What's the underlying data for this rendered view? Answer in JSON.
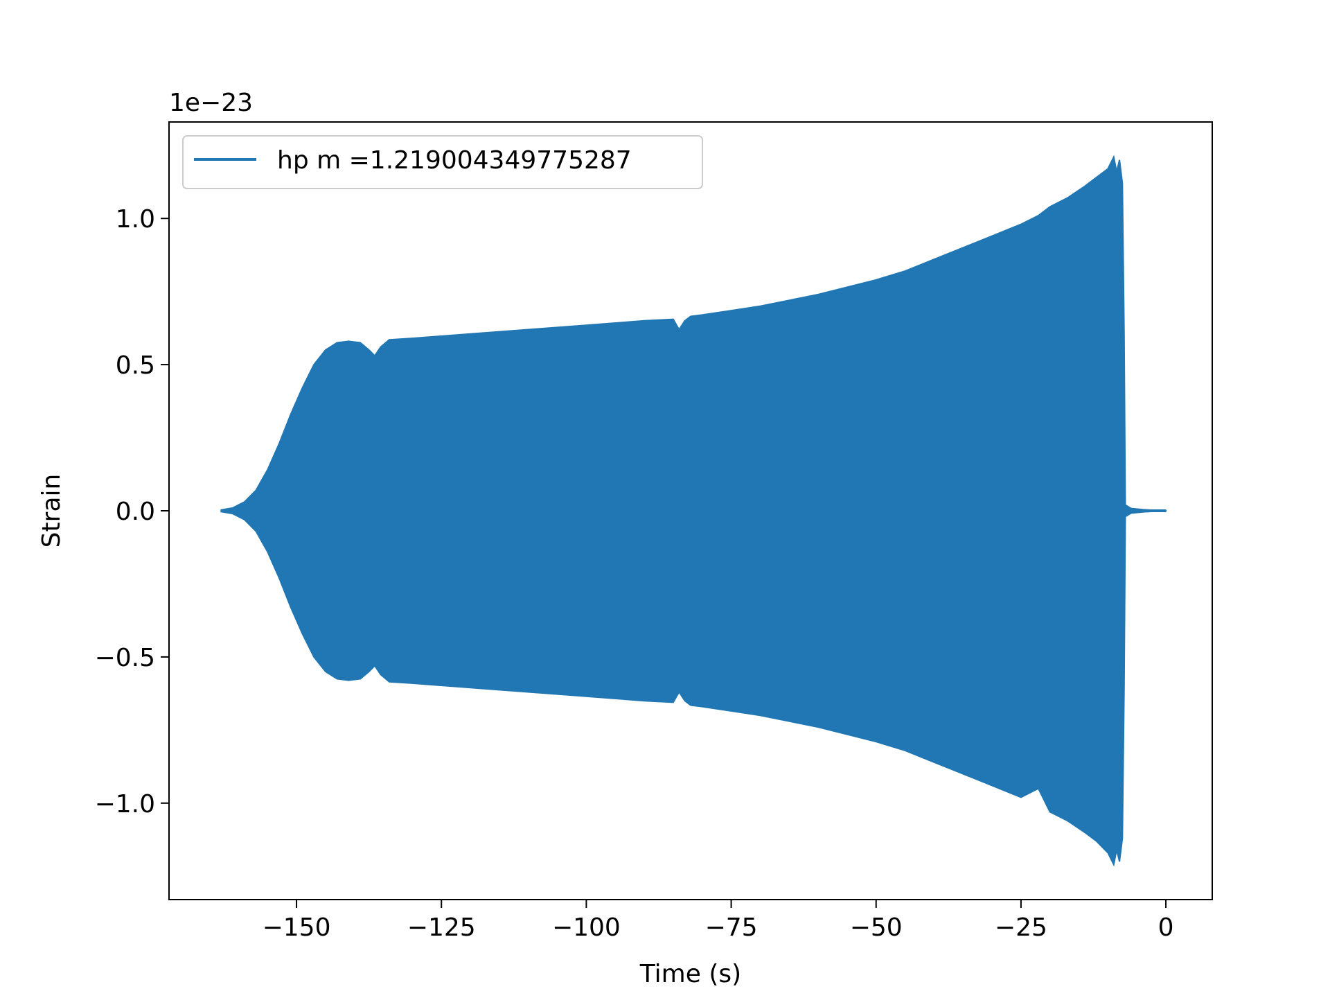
{
  "chart_data": {
    "type": "area",
    "title": "",
    "xlabel": "Time (s)",
    "ylabel": "Strain",
    "offset_label": "1e−23",
    "xlim": [
      -172,
      8
    ],
    "ylim": [
      -1.33,
      1.33
    ],
    "xticks": [
      {
        "value": -150,
        "label": "−150"
      },
      {
        "value": -125,
        "label": "−125"
      },
      {
        "value": -100,
        "label": "−100"
      },
      {
        "value": -75,
        "label": "−75"
      },
      {
        "value": -50,
        "label": "−50"
      },
      {
        "value": -25,
        "label": "−25"
      },
      {
        "value": 0,
        "label": "0"
      }
    ],
    "yticks": [
      {
        "value": 1.0,
        "label": "1.0"
      },
      {
        "value": 0.5,
        "label": "0.5"
      },
      {
        "value": 0.0,
        "label": "0.0"
      },
      {
        "value": -0.5,
        "label": "−0.5"
      },
      {
        "value": -1.0,
        "label": "−1.0"
      }
    ],
    "grid": false,
    "legend_position": "upper-left",
    "series": [
      {
        "name": "hp m =1.219004349775287",
        "color": "#2077b4",
        "envelope": {
          "x": [
            -163,
            -161,
            -159,
            -157,
            -155,
            -153,
            -151,
            -149,
            -147,
            -145,
            -143,
            -141,
            -139,
            -137.5,
            -136.5,
            -135.5,
            -134,
            -130,
            -120,
            -110,
            -100,
            -90,
            -85,
            -84,
            -83,
            -82,
            -80,
            -75,
            -70,
            -65,
            -60,
            -55,
            -50,
            -45,
            -40,
            -35,
            -30,
            -25,
            -22,
            -20,
            -17,
            -14,
            -12,
            -10,
            -9,
            -8.5,
            -8,
            -7.5,
            -7.2,
            -7,
            -6,
            -4,
            -2,
            0
          ],
          "upper": [
            0.003,
            0.01,
            0.03,
            0.07,
            0.14,
            0.23,
            0.33,
            0.42,
            0.5,
            0.55,
            0.575,
            0.58,
            0.575,
            0.55,
            0.53,
            0.56,
            0.585,
            0.59,
            0.605,
            0.62,
            0.635,
            0.65,
            0.655,
            0.62,
            0.65,
            0.665,
            0.67,
            0.685,
            0.7,
            0.72,
            0.74,
            0.765,
            0.79,
            0.82,
            0.86,
            0.9,
            0.94,
            0.98,
            1.01,
            1.04,
            1.07,
            1.11,
            1.14,
            1.17,
            1.21,
            1.16,
            1.2,
            1.12,
            0.6,
            0.02,
            0.008,
            0.004,
            0.002,
            0.001
          ],
          "lower": [
            -0.003,
            -0.01,
            -0.03,
            -0.07,
            -0.14,
            -0.23,
            -0.33,
            -0.42,
            -0.5,
            -0.55,
            -0.575,
            -0.58,
            -0.575,
            -0.55,
            -0.53,
            -0.56,
            -0.585,
            -0.59,
            -0.605,
            -0.62,
            -0.635,
            -0.65,
            -0.655,
            -0.62,
            -0.65,
            -0.665,
            -0.67,
            -0.685,
            -0.7,
            -0.72,
            -0.74,
            -0.765,
            -0.79,
            -0.82,
            -0.86,
            -0.9,
            -0.94,
            -0.98,
            -0.95,
            -1.03,
            -1.06,
            -1.1,
            -1.13,
            -1.17,
            -1.21,
            -1.16,
            -1.2,
            -1.12,
            -0.6,
            -0.02,
            -0.008,
            -0.004,
            -0.002,
            -0.001
          ]
        }
      }
    ]
  }
}
